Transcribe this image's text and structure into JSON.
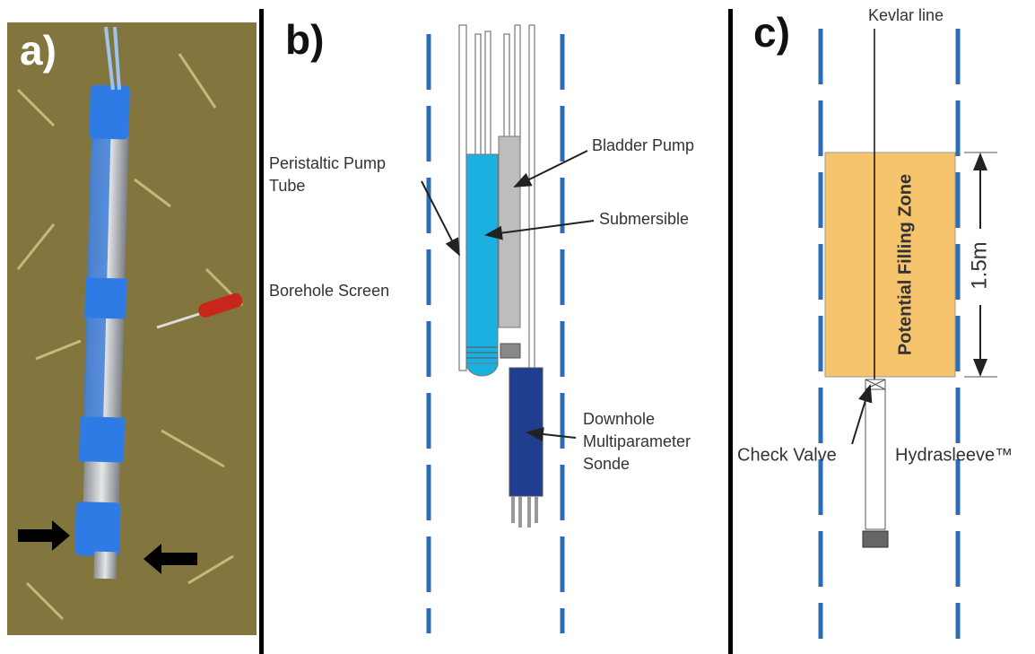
{
  "panels": [
    {
      "label": "a)"
    },
    {
      "label": "b)",
      "peristaltic": [
        "Peristaltic Pump",
        "Tube"
      ],
      "bladder": "Bladder Pump",
      "submersible": "Submersible",
      "screen": "Borehole Screen",
      "sonde": [
        "Downhole",
        "Multiparameter",
        "Sonde"
      ]
    },
    {
      "label": "c)",
      "kevlar": "Kevlar line",
      "zone": "Potential Filling Zone",
      "length": "1.5m",
      "valve": "Check Valve",
      "sleeve": "Hydrasleeve™"
    }
  ]
}
